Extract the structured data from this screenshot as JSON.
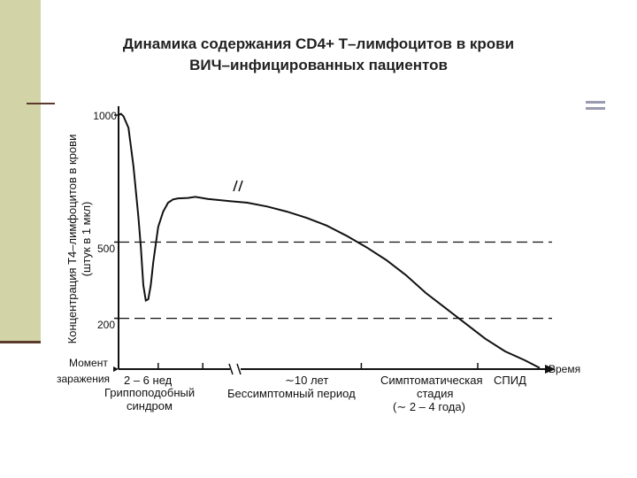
{
  "slide": {
    "title_line1": "Динамика содержания CD4+ Т–лимфоцитов в крови",
    "title_line2": "ВИЧ–инфицированных пациентов",
    "colors": {
      "sidebar": "#d3d3a8",
      "rule": "#5a3a2a",
      "accent_rule": "#9a9ab0"
    }
  },
  "chart_data": {
    "type": "line",
    "ylabel_line1": "Концентрация Т4–лимфоцитов в крови",
    "ylabel_line2": "(штук в 1 мкл)",
    "xlabel": "Время",
    "yticks": [
      {
        "value": 1000,
        "label": "1000"
      },
      {
        "value": 500,
        "label": "500"
      },
      {
        "value": 200,
        "label": "200"
      }
    ],
    "reference_lines": [
      500,
      200
    ],
    "ylim": [
      0,
      1000
    ],
    "series": [
      {
        "values": [
          [
            0,
            1000
          ],
          [
            0.5,
            1005
          ],
          [
            1,
            995
          ],
          [
            2,
            950
          ],
          [
            3,
            800
          ],
          [
            4,
            600
          ],
          [
            4.5,
            480
          ],
          [
            5,
            330
          ],
          [
            5.5,
            270
          ],
          [
            6,
            275
          ],
          [
            6.5,
            330
          ],
          [
            7,
            420
          ],
          [
            8,
            560
          ],
          [
            9,
            620
          ],
          [
            10,
            655
          ],
          [
            11,
            668
          ],
          [
            12,
            672
          ],
          [
            14,
            674
          ],
          [
            15.5,
            678
          ],
          [
            18,
            670
          ],
          [
            22,
            662
          ],
          [
            26,
            655
          ],
          [
            30,
            640
          ],
          [
            34,
            620
          ],
          [
            38,
            595
          ],
          [
            42,
            565
          ],
          [
            46,
            525
          ],
          [
            50,
            480
          ],
          [
            54,
            430
          ],
          [
            58,
            370
          ],
          [
            62,
            300
          ],
          [
            66,
            240
          ],
          [
            70,
            180
          ],
          [
            74,
            120
          ],
          [
            78,
            70
          ],
          [
            82,
            35
          ],
          [
            85,
            5
          ]
        ]
      }
    ],
    "x_ticks": [
      {
        "x": 0,
        "label": ""
      },
      {
        "x": 8,
        "label": ""
      },
      {
        "x": 17,
        "label": ""
      },
      {
        "x": 49,
        "label": ""
      },
      {
        "x": 72.5,
        "label": ""
      }
    ],
    "annotations": {
      "moment_line1": "Момент",
      "moment_line2": "заражения",
      "weeks": "2 – 6 нед",
      "flu_line1": "Гриппоподобный",
      "flu_line2": "синдром",
      "years": "∼10 лет",
      "asymptomatic": "Бессимптомный период",
      "symptomatic_line1": "Симптоматическая",
      "symptomatic_line2": "стадия",
      "symptomatic_line3": "(∼ 2 – 4 года)",
      "aids": "СПИД"
    }
  }
}
